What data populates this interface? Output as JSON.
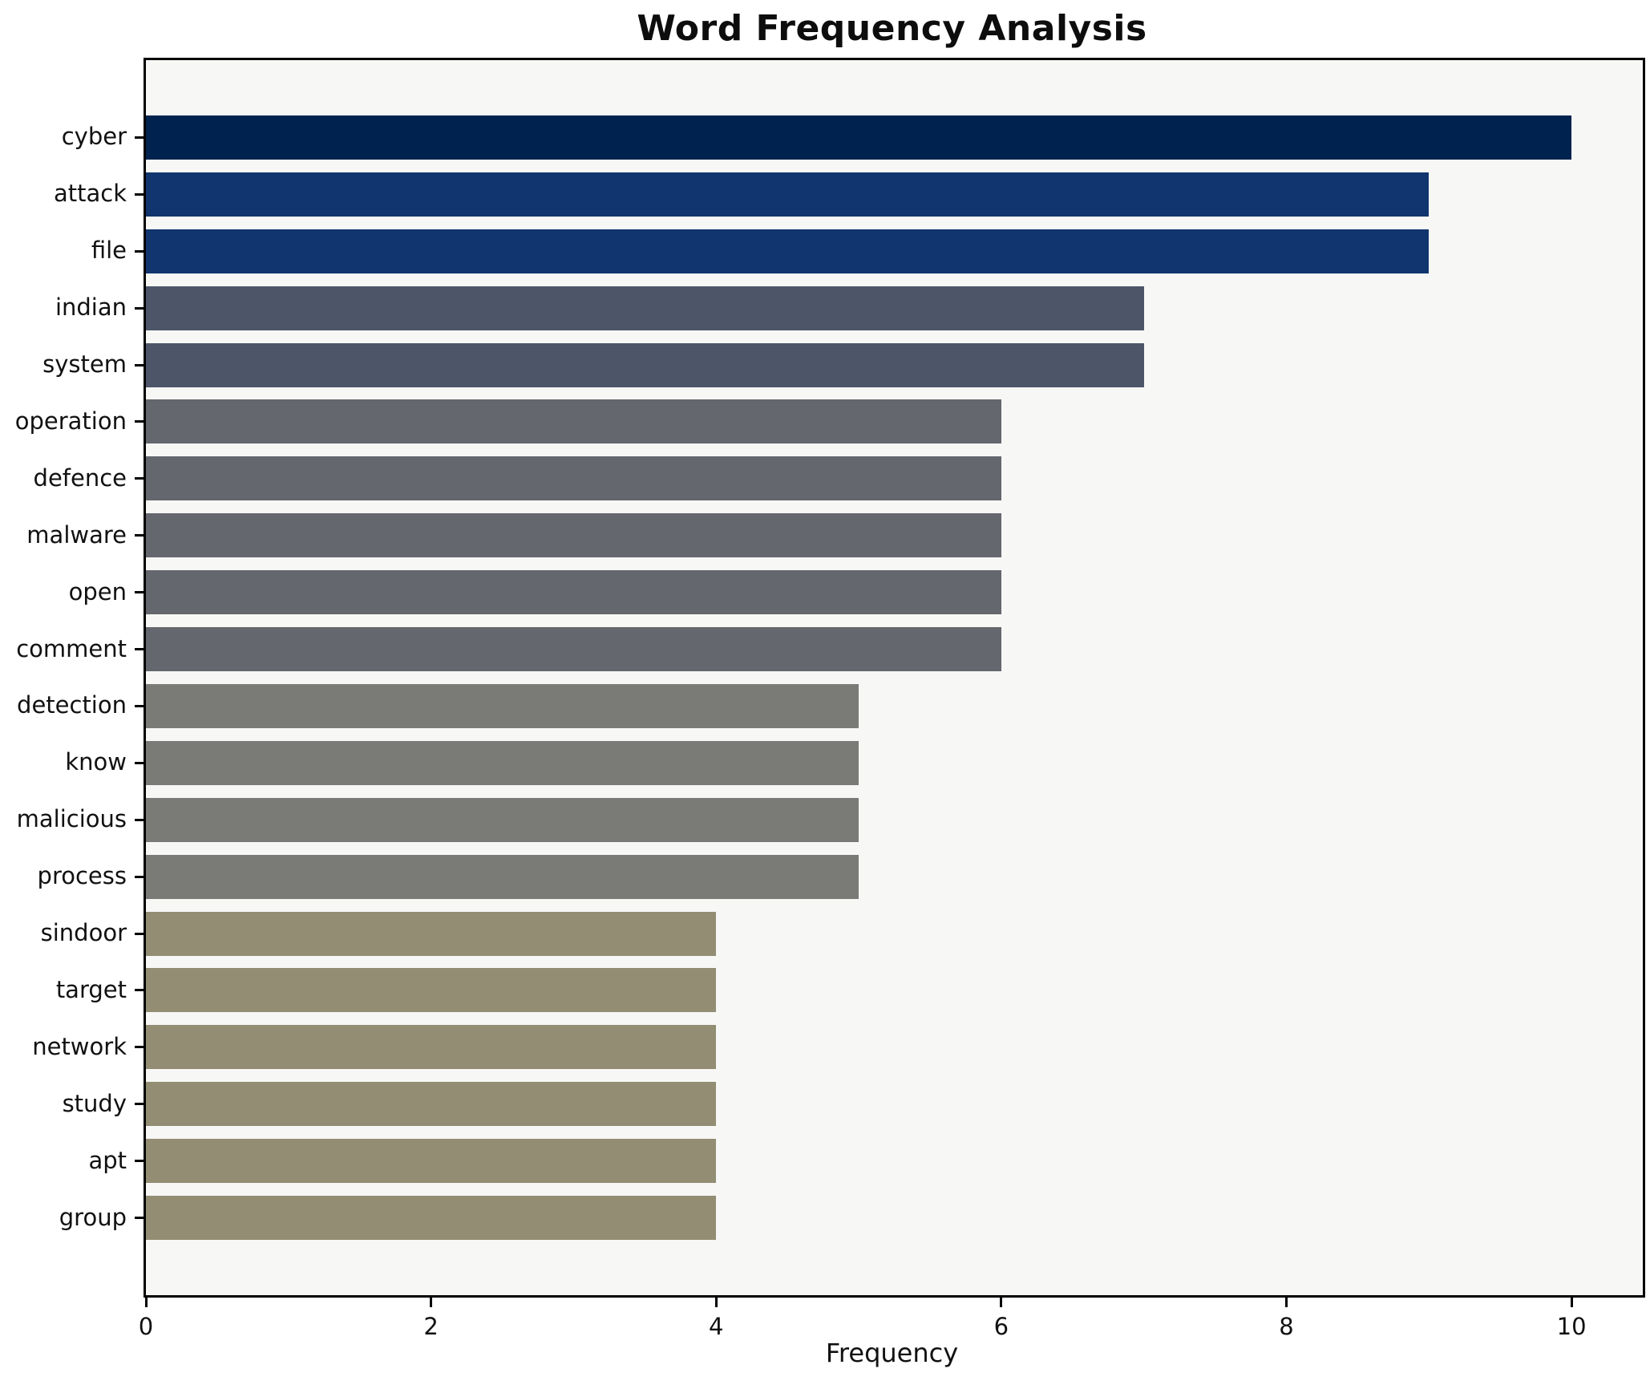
{
  "page": {
    "background": "#ffffff"
  },
  "chart_data": {
    "type": "bar",
    "orientation": "horizontal",
    "title": "Word Frequency Analysis",
    "xlabel": "Frequency",
    "ylabel": "",
    "categories": [
      "cyber",
      "attack",
      "file",
      "indian",
      "system",
      "operation",
      "defence",
      "malware",
      "open",
      "comment",
      "detection",
      "know",
      "malicious",
      "process",
      "sindoor",
      "target",
      "network",
      "study",
      "apt",
      "group"
    ],
    "values": [
      10,
      9,
      9,
      7,
      7,
      6,
      6,
      6,
      6,
      6,
      5,
      5,
      5,
      5,
      4,
      4,
      4,
      4,
      4,
      4
    ],
    "bar_colors": [
      "#00224e",
      "#10356f",
      "#10356f",
      "#4d5669",
      "#4d5669",
      "#65676e",
      "#65676e",
      "#65676e",
      "#65676e",
      "#65676e",
      "#7a7a77",
      "#7a7a77",
      "#7a7a77",
      "#7a7a77",
      "#938d74",
      "#938d74",
      "#938d74",
      "#938d74",
      "#938d74",
      "#938d74"
    ],
    "xlim": [
      0,
      10.5
    ],
    "xticks": [
      "0",
      "2",
      "4",
      "6",
      "8",
      "10"
    ],
    "xtick_values": [
      0,
      2,
      4,
      6,
      8,
      10
    ],
    "grid": false,
    "legend": null,
    "plot_background": "#f7f7f5",
    "spine_color": "#000000",
    "text_color": "#111111"
  }
}
